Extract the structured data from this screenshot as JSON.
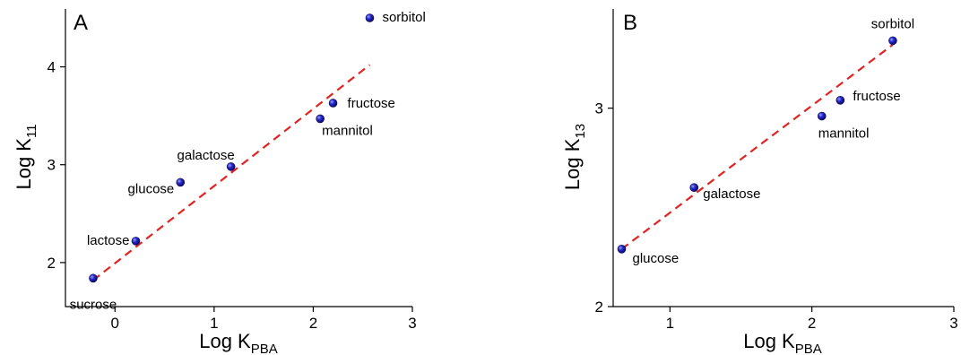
{
  "chart_data": [
    {
      "type": "scatter",
      "panel": "A",
      "xlabel": "Log K",
      "xlabel_sub": "PBA",
      "ylabel": "Log K",
      "ylabel_sub": "11",
      "xlim": [
        -0.5,
        3
      ],
      "ylim": [
        1.55,
        4.5
      ],
      "xticks": [
        0,
        1,
        2,
        3
      ],
      "yticks": [
        2,
        3,
        4
      ],
      "points": [
        {
          "label": "sucrose",
          "x": -0.22,
          "y": 1.84
        },
        {
          "label": "lactose",
          "x": 0.21,
          "y": 2.22
        },
        {
          "label": "glucose",
          "x": 0.66,
          "y": 2.82
        },
        {
          "label": "galactose",
          "x": 1.17,
          "y": 2.98
        },
        {
          "label": "mannitol",
          "x": 2.07,
          "y": 3.47
        },
        {
          "label": "fructose",
          "x": 2.2,
          "y": 3.63
        },
        {
          "label": "sorbitol",
          "x": 2.57,
          "y": 4.5
        }
      ],
      "fit": {
        "x": [
          -0.22,
          2.57
        ],
        "y": [
          1.82,
          4.02
        ],
        "color": "#e32222",
        "style": "dashed"
      },
      "marker_color": "#1a1aa8"
    },
    {
      "type": "scatter",
      "panel": "B",
      "xlabel": "Log K",
      "xlabel_sub": "PBA",
      "ylabel": "Log K",
      "ylabel_sub": "13",
      "xlim": [
        0.6,
        3
      ],
      "ylim": [
        2,
        3.5
      ],
      "xticks": [
        1,
        2,
        3
      ],
      "yticks": [
        2,
        3
      ],
      "points": [
        {
          "label": "glucose",
          "x": 0.66,
          "y": 2.29
        },
        {
          "label": "galactose",
          "x": 1.17,
          "y": 2.6
        },
        {
          "label": "mannitol",
          "x": 2.07,
          "y": 2.96
        },
        {
          "label": "fructose",
          "x": 2.2,
          "y": 3.04
        },
        {
          "label": "sorbitol",
          "x": 2.57,
          "y": 3.34
        }
      ],
      "fit": {
        "x": [
          0.66,
          2.57
        ],
        "y": [
          2.29,
          3.32
        ],
        "color": "#e32222",
        "style": "dashed"
      },
      "marker_color": "#1a1aa8"
    }
  ]
}
